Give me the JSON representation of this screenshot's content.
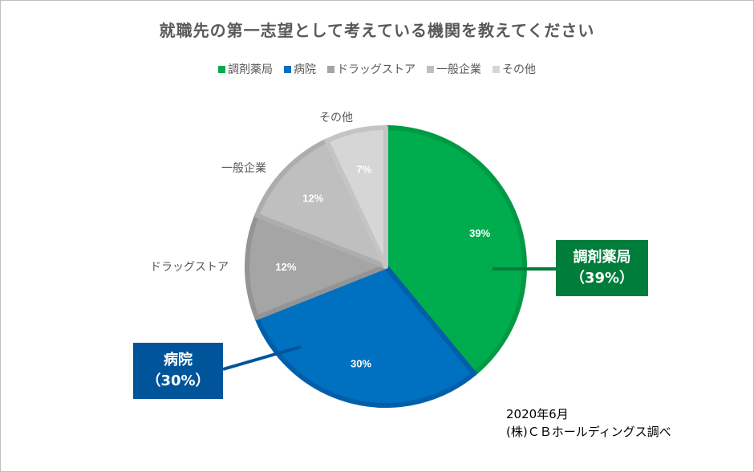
{
  "chart_data": {
    "type": "pie",
    "title": "就職先の第一志望として考えている機関を教えてください",
    "categories": [
      "調剤薬局",
      "病院",
      "ドラッグストア",
      "一般企業",
      "その他"
    ],
    "values": [
      39,
      30,
      12,
      12,
      7
    ],
    "data_labels": [
      "39%",
      "30%",
      "12%",
      "12%",
      "7%"
    ],
    "colors": [
      "#00AD4E",
      "#0070C0",
      "#A5A5A5",
      "#BFBFBF",
      "#D6D6D6"
    ],
    "stroke_colors": [
      "#009A44",
      "#005FA8",
      "#949494",
      "#ADADAD",
      "#C4C4C4"
    ],
    "legend_position": "top",
    "callouts": [
      {
        "label": "調剤薬局",
        "value": "（39%）",
        "color": "#007D3A"
      },
      {
        "label": "病院",
        "value": "（30%）",
        "color": "#00559A"
      }
    ]
  },
  "note": {
    "line1": "2020年6月",
    "line2": "(株)ＣＢホールディングス調べ"
  }
}
